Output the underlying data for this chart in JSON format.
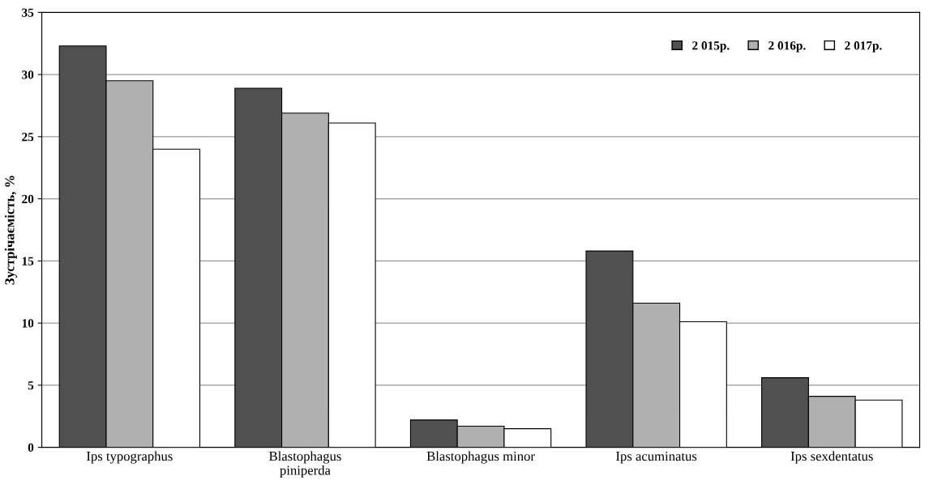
{
  "chart_data": {
    "type": "bar",
    "ylabel": "Зустрічаємість, %",
    "categories": [
      "Ips typographus",
      "Blastophagus\npiniperda",
      "Blastophagus minor",
      "Ips acuminatus",
      "Ips sexdentatus"
    ],
    "series": [
      {
        "name": "2 015р.",
        "color": "#505050",
        "values": [
          32.3,
          28.9,
          2.2,
          15.8,
          5.6
        ]
      },
      {
        "name": "2 016р.",
        "color": "#b0b0b0",
        "values": [
          29.5,
          26.9,
          1.7,
          11.6,
          4.1
        ]
      },
      {
        "name": "2 017р.",
        "color": "#ffffff",
        "values": [
          24.0,
          26.1,
          1.5,
          10.1,
          3.8
        ]
      }
    ],
    "ylim": [
      0,
      35
    ],
    "yticks": [
      0,
      5,
      10,
      15,
      20,
      25,
      30,
      35
    ],
    "grid": "y",
    "legend": "top right"
  }
}
